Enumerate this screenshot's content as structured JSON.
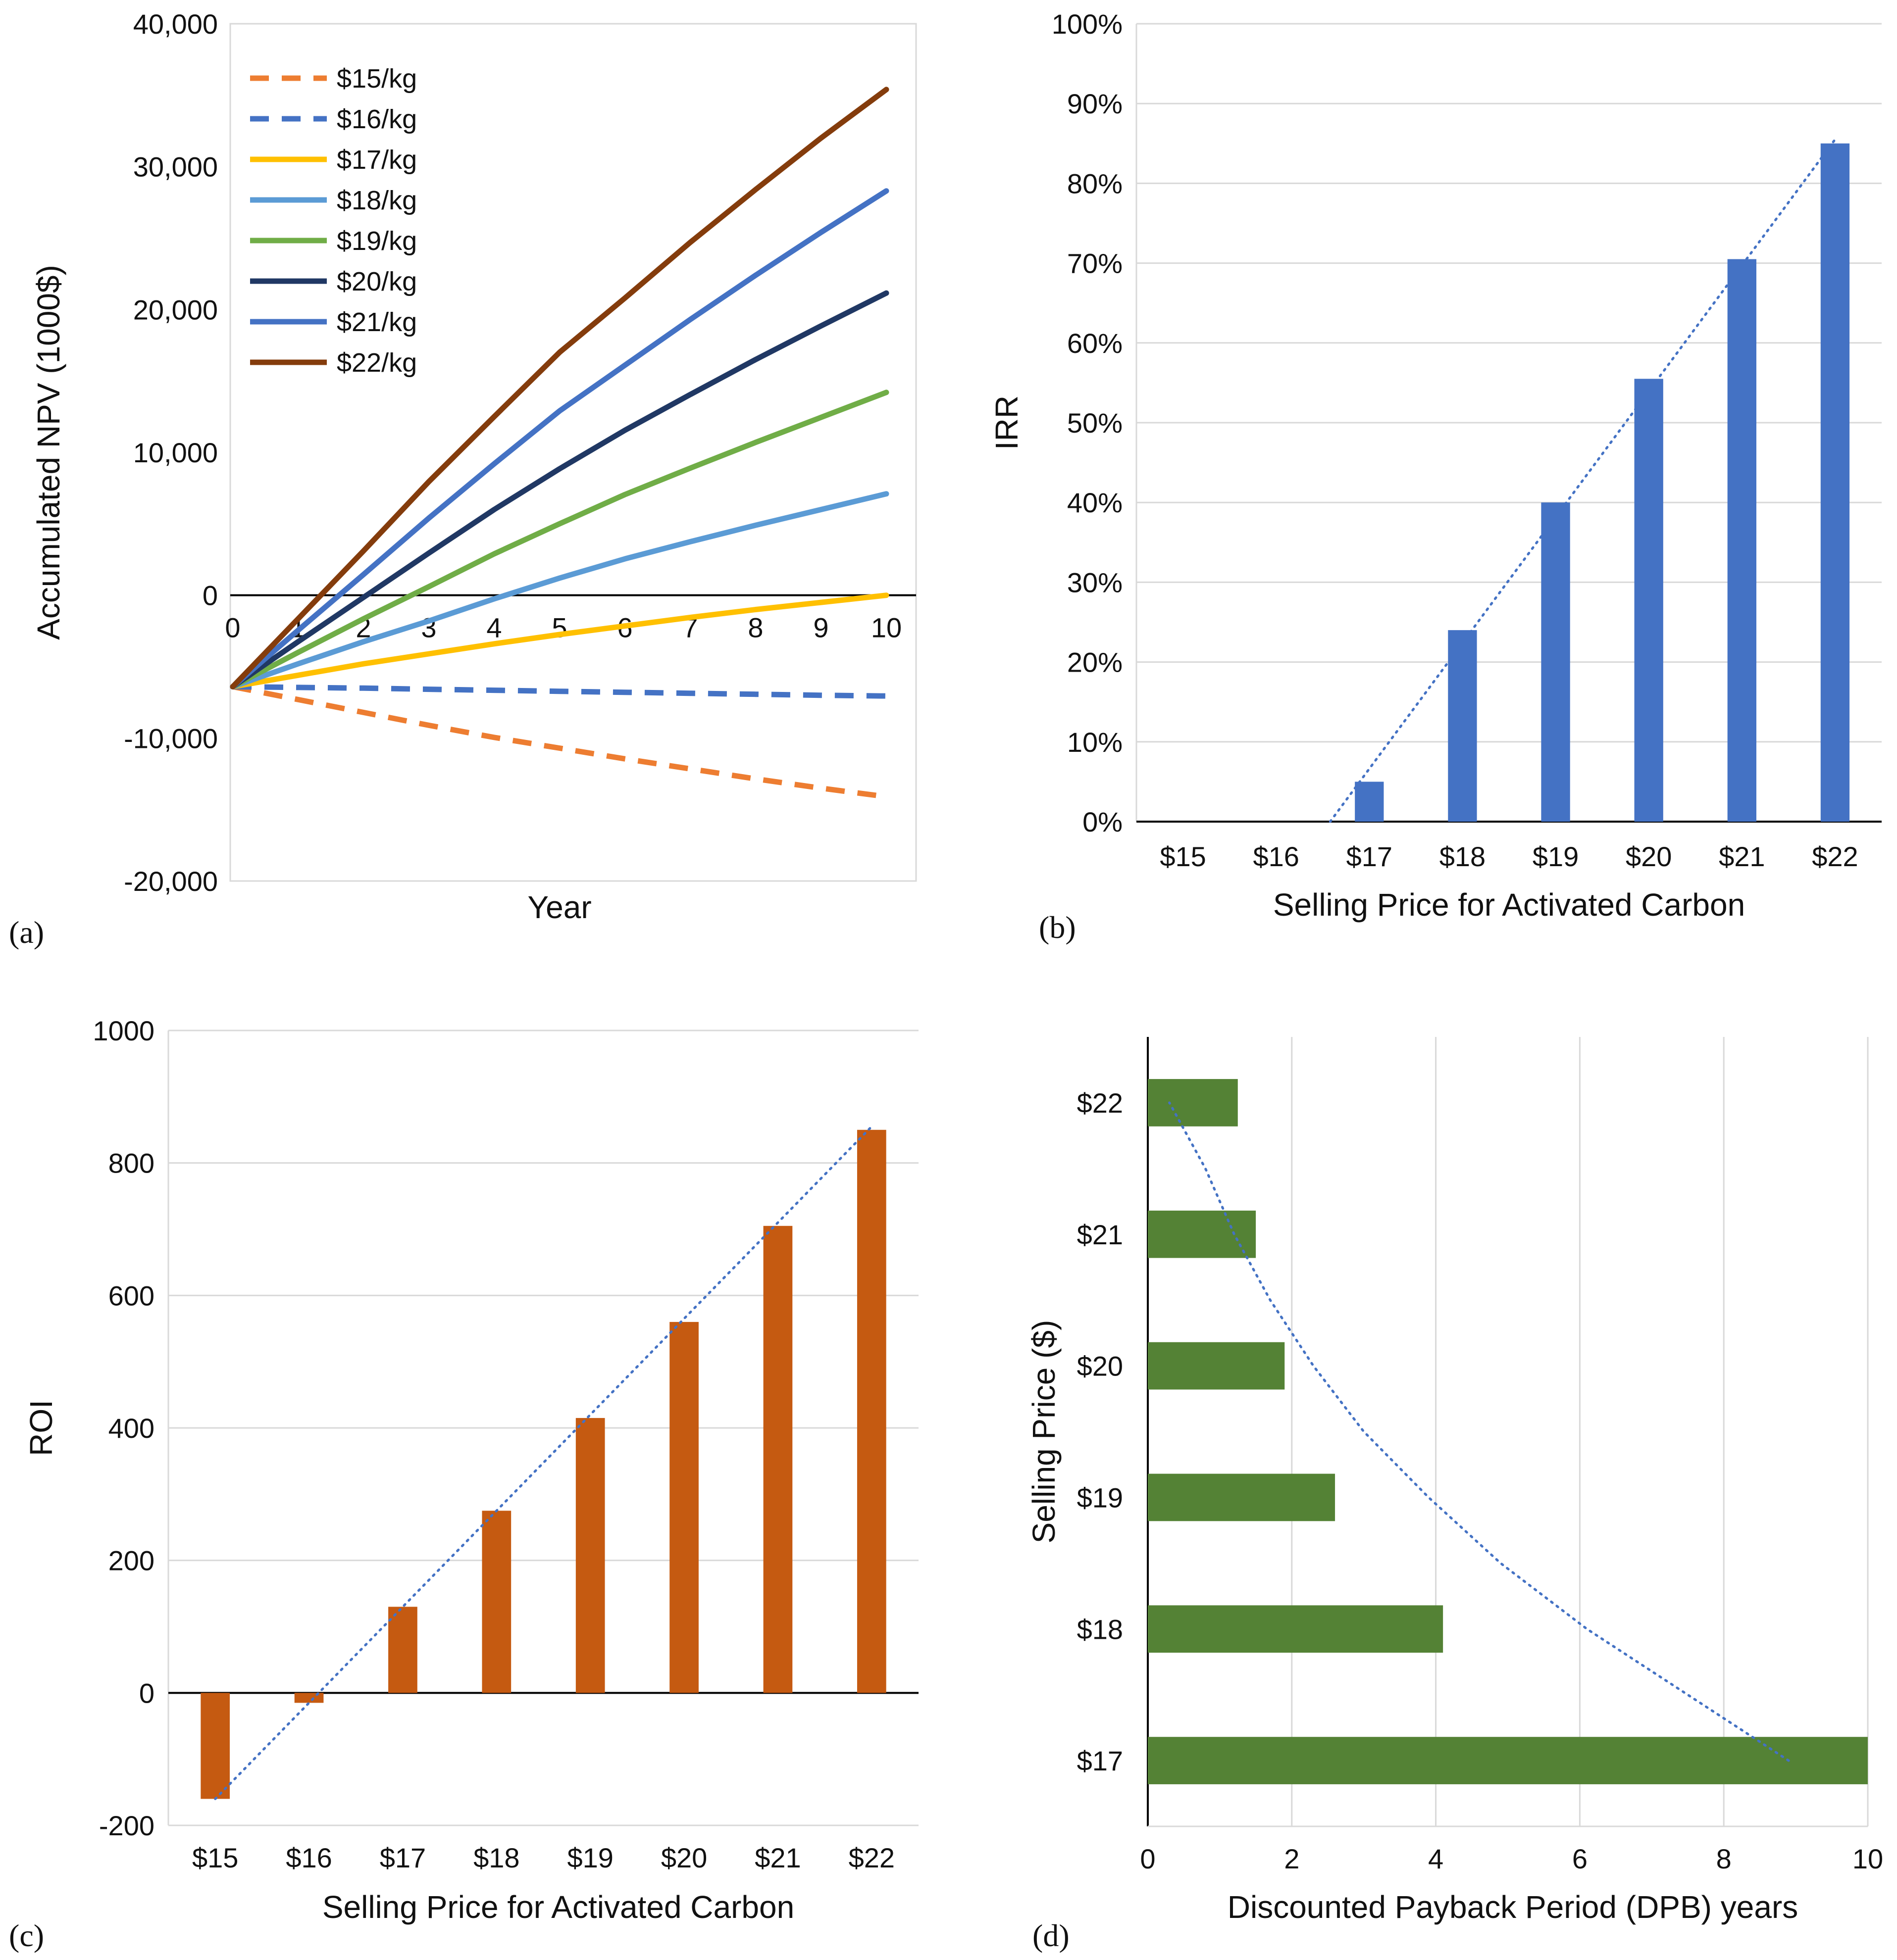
{
  "panels": [
    "(a)",
    "(b)",
    "(c)",
    "(d)"
  ],
  "colors": {
    "s15": "#ED7D31",
    "s16": "#4472C4",
    "s17": "#FFC000",
    "s18": "#5B9BD5",
    "s19": "#70AD47",
    "s20": "#203864",
    "s21": "#4472C4",
    "s22": "#843C0C",
    "irr_bar": "#4472C4",
    "roi_bar": "#C55A11",
    "dpb_bar": "#548235",
    "trend": "#4472C4",
    "grid": "#D9D9D9",
    "axis": "#000000"
  },
  "chart_data": [
    {
      "id": "a",
      "type": "line",
      "xlabel": "Year",
      "ylabel": "Accumulated NPV (1000$)",
      "x": [
        0,
        1,
        2,
        3,
        4,
        5,
        6,
        7,
        8,
        9,
        10
      ],
      "xticks": [
        "0",
        "1",
        "2",
        "3",
        "4",
        "5",
        "6",
        "7",
        "8",
        "9",
        "10"
      ],
      "ylim": [
        -20000,
        40000
      ],
      "yticks": [
        "-20,000",
        "-10,000",
        "0",
        "10,000",
        "20,000",
        "30,000",
        "40,000"
      ],
      "ytick_values": [
        -20000,
        -10000,
        0,
        10000,
        20000,
        30000,
        40000
      ],
      "series": [
        {
          "name": "$15/kg",
          "style": "dashed",
          "color_key": "s15",
          "values": [
            -6400,
            -7300,
            -8200,
            -9100,
            -9950,
            -10700,
            -11450,
            -12150,
            -12850,
            -13500,
            -14100
          ]
        },
        {
          "name": "$16/kg",
          "style": "dashed",
          "color_key": "s16",
          "values": [
            -6400,
            -6450,
            -6500,
            -6580,
            -6650,
            -6720,
            -6790,
            -6860,
            -6930,
            -7000,
            -7050
          ]
        },
        {
          "name": "$17/kg",
          "style": "solid",
          "color_key": "s17",
          "values": [
            -6400,
            -5600,
            -4800,
            -4100,
            -3400,
            -2750,
            -2150,
            -1550,
            -1000,
            -500,
            0
          ]
        },
        {
          "name": "$18/kg",
          "style": "solid",
          "color_key": "s18",
          "values": [
            -6400,
            -4800,
            -3250,
            -1800,
            -250,
            1200,
            2550,
            3750,
            4900,
            6000,
            7100
          ]
        },
        {
          "name": "$19/kg",
          "style": "solid",
          "color_key": "s19",
          "values": [
            -6400,
            -4000,
            -1650,
            600,
            2900,
            5000,
            7050,
            8900,
            10700,
            12450,
            14200
          ]
        },
        {
          "name": "$20/kg",
          "style": "solid",
          "color_key": "s20",
          "values": [
            -6400,
            -3250,
            -150,
            2950,
            6000,
            8850,
            11550,
            14050,
            16500,
            18850,
            21150
          ]
        },
        {
          "name": "$21/kg",
          "style": "solid",
          "color_key": "s21",
          "values": [
            -6400,
            -2450,
            1450,
            5400,
            9200,
            12900,
            16100,
            19300,
            22400,
            25400,
            28300
          ]
        },
        {
          "name": "$22/kg",
          "style": "solid",
          "color_key": "s22",
          "values": [
            -6400,
            -1650,
            3100,
            7950,
            12500,
            17000,
            20800,
            24700,
            28400,
            32000,
            35400
          ]
        }
      ]
    },
    {
      "id": "b",
      "type": "bar",
      "xlabel": "Selling  Price for Activated Carbon",
      "ylabel": "IRR",
      "categories": [
        "$15",
        "$16",
        "$17",
        "$18",
        "$19",
        "$20",
        "$21",
        "$22"
      ],
      "values": [
        0,
        0,
        5,
        24,
        40,
        55.5,
        70.5,
        85
      ],
      "ylim": [
        0,
        100
      ],
      "yticks": [
        "0%",
        "10%",
        "20%",
        "30%",
        "40%",
        "50%",
        "60%",
        "70%",
        "80%",
        "90%",
        "100%"
      ],
      "ytick_values": [
        0,
        10,
        20,
        30,
        40,
        50,
        60,
        70,
        80,
        90,
        100
      ],
      "trendline": {
        "type": "linear",
        "from": [
          1.58,
          0
        ],
        "to": [
          7,
          85.5
        ]
      }
    },
    {
      "id": "c",
      "type": "bar",
      "xlabel": "Selling  Price for Activated Carbon",
      "ylabel": "ROI",
      "categories": [
        "$15",
        "$16",
        "$17",
        "$18",
        "$19",
        "$20",
        "$21",
        "$22"
      ],
      "values": [
        -160,
        -15,
        130,
        275,
        415,
        560,
        705,
        850
      ],
      "ylim": [
        -200,
        1000
      ],
      "yticks": [
        "-200",
        "0",
        "200",
        "400",
        "600",
        "800",
        "1000"
      ],
      "ytick_values": [
        -200,
        0,
        200,
        400,
        600,
        800,
        1000
      ],
      "trendline": {
        "type": "linear",
        "from": [
          0,
          -160
        ],
        "to": [
          7,
          855
        ]
      }
    },
    {
      "id": "d",
      "type": "bar",
      "orientation": "horizontal",
      "xlabel": "Discounted Payback Period (DPB) years",
      "ylabel": "Selling  Price ($)",
      "categories": [
        "$17",
        "$18",
        "$19",
        "$20",
        "$21",
        "$22"
      ],
      "values": [
        10,
        4.1,
        2.6,
        1.9,
        1.5,
        1.25
      ],
      "xlim": [
        0,
        10
      ],
      "xticks": [
        "0",
        "2",
        "4",
        "6",
        "8",
        "10"
      ],
      "xtick_values": [
        0,
        2,
        4,
        6,
        8,
        10
      ],
      "trendline": {
        "type": "polynomial",
        "points": [
          [
            8.9,
            0
          ],
          [
            7.5,
            0.5
          ],
          [
            6.1,
            1
          ],
          [
            4.9,
            1.5
          ],
          [
            3.9,
            2
          ],
          [
            3.0,
            2.5
          ],
          [
            2.3,
            3
          ],
          [
            1.7,
            3.5
          ],
          [
            1.2,
            4
          ],
          [
            0.8,
            4.5
          ],
          [
            0.3,
            5
          ]
        ]
      }
    }
  ]
}
